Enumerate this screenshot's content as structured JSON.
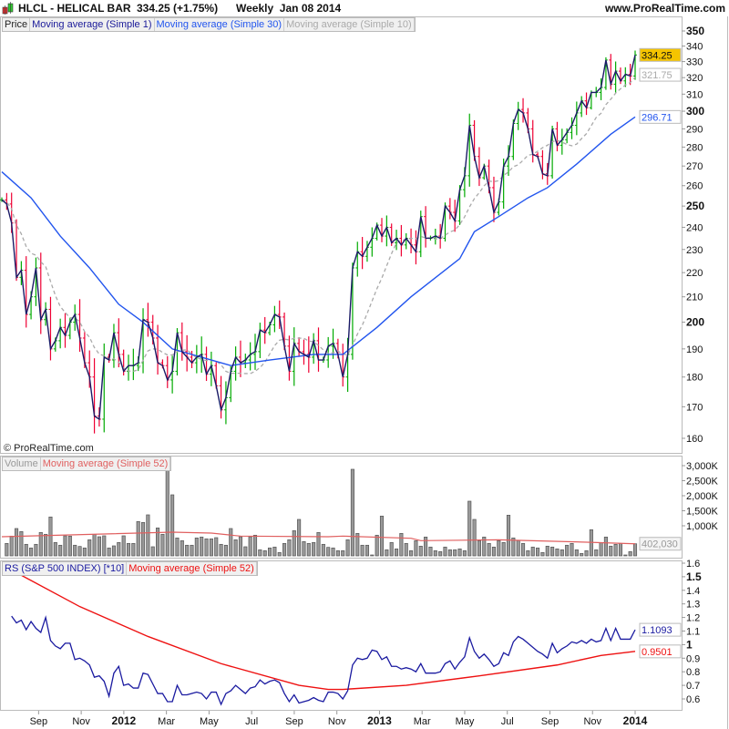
{
  "header": {
    "symbol": "HLCL - HELICAL BAR",
    "price": "334.25 (+1.75%)",
    "period": "Weekly  Jan 08 2014",
    "site": "www.ProRealTime.com",
    "icon": "candlestick-icon"
  },
  "price_panel": {
    "legend": [
      "Price",
      "Moving average (Simple 1)",
      "Moving average (Simple 30)",
      "Moving average (Simple 10)"
    ],
    "legend_colors": [
      "#222222",
      "#1a1a99",
      "#2255ee",
      "#aaaaaa"
    ],
    "copyright": "© ProRealTime.com",
    "scale": "log",
    "ticks": [
      160,
      170,
      180,
      190,
      200,
      210,
      220,
      230,
      240,
      250,
      260,
      270,
      280,
      290,
      300,
      310,
      320,
      330,
      340,
      350
    ],
    "bold_ticks": [
      200,
      250,
      300,
      350
    ],
    "badges": {
      "last": "334.25",
      "sma10": "321.75",
      "sma30": "296.71"
    }
  },
  "volume_panel": {
    "legend": [
      "Volume",
      "Moving average (Simple 52)"
    ],
    "ticks": [
      "1,000K",
      "1,500K",
      "2,000K",
      "2,500K",
      "3,000K"
    ],
    "badge": "402,030"
  },
  "rs_panel": {
    "legend": [
      "RS (S&P 500 INDEX) [*10]",
      "Moving average (Simple 52)"
    ],
    "ticks": [
      "0.6",
      "0.7",
      "0.8",
      "0.9",
      "1",
      "1.1",
      "1.2",
      "1.3",
      "1.4",
      "1.5",
      "1.6"
    ],
    "badges": {
      "rs": "1.1093",
      "ma": "0.9501"
    }
  },
  "x_axis": {
    "labels": [
      "Sep",
      "Nov",
      "2012",
      "Mar",
      "May",
      "Jul",
      "Sep",
      "Nov",
      "2013",
      "Mar",
      "May",
      "Jul",
      "Sep",
      "Nov",
      "2014"
    ],
    "bold": [
      "2012",
      "2013",
      "2014"
    ]
  },
  "colors": {
    "up": "#00aa00",
    "down": "#ee0033",
    "close_line": "#1a1a66",
    "sma30": "#2255ee",
    "sma10": "#aaaaaa",
    "volume_bar": "#999999",
    "rs_line": "#1a1aa0",
    "rs_ma": "#ee1111",
    "last_badge": "#f5c400"
  },
  "chart_data": {
    "type": "line",
    "frequency": "weekly",
    "last_date": "2014-01-08",
    "close": [
      253,
      251,
      242,
      218,
      221,
      203,
      210,
      222,
      201,
      205,
      190,
      193,
      198,
      195,
      200,
      203,
      194,
      185,
      180,
      167,
      166,
      187,
      186,
      196,
      188,
      182,
      184,
      184,
      185,
      201,
      200,
      194,
      185,
      184,
      179,
      182,
      196,
      189,
      187,
      185,
      187,
      188,
      181,
      184,
      177,
      169,
      173,
      182,
      187,
      185,
      186,
      188,
      189,
      197,
      196,
      199,
      203,
      202,
      191,
      182,
      192,
      189,
      188,
      187,
      193,
      186,
      186,
      191,
      192,
      188,
      180,
      188,
      222,
      229,
      227,
      231,
      235,
      241,
      236,
      240,
      233,
      235,
      232,
      235,
      232,
      229,
      245,
      235,
      235,
      236,
      235,
      250,
      247,
      243,
      258,
      265,
      292,
      275,
      264,
      270,
      259,
      247,
      252,
      270,
      275,
      293,
      301,
      299,
      290,
      276,
      275,
      266,
      265,
      290,
      281,
      284,
      288,
      292,
      299,
      306,
      302,
      311,
      311,
      314,
      331,
      316,
      324,
      318,
      322,
      321,
      334.25
    ],
    "sma30": [
      [
        "2011-07-13",
        267
      ],
      [
        "2011-08-24",
        254
      ],
      [
        "2011-10-05",
        236
      ],
      [
        "2011-11-16",
        222
      ],
      [
        "2011-12-28",
        207
      ],
      [
        "2012-02-01",
        200
      ],
      [
        "2012-03-14",
        190
      ],
      [
        "2012-05-09",
        186
      ],
      [
        "2012-06-06",
        184
      ],
      [
        "2012-08-01",
        186
      ],
      [
        "2012-10-03",
        188
      ],
      [
        "2012-11-14",
        188
      ],
      [
        "2013-01-02",
        198
      ],
      [
        "2013-02-20",
        210
      ],
      [
        "2013-05-01",
        226
      ],
      [
        "2013-05-22",
        238
      ],
      [
        "2013-06-26",
        245
      ],
      [
        "2013-08-07",
        254
      ],
      [
        "2013-09-04",
        259
      ],
      [
        "2013-10-16",
        271
      ],
      [
        "2013-12-04",
        287
      ],
      [
        "2014-01-08",
        296.71
      ]
    ],
    "volume_k": [
      414,
      657,
      909,
      808,
      384,
      263,
      384,
      778,
      717,
      1293,
      444,
      354,
      667,
      657,
      354,
      313,
      263,
      535,
      717,
      636,
      667,
      263,
      333,
      444,
      667,
      414,
      414,
      1141,
      1111,
      1364,
      303,
      929,
      717,
      3141,
      2030,
      596,
      505,
      354,
      354,
      596,
      626,
      566,
      566,
      606,
      384,
      354,
      909,
      535,
      636,
      303,
      636,
      687,
      202,
      172,
      263,
      293,
      111,
      414,
      535,
      838,
      1212,
      475,
      414,
      444,
      778,
      384,
      283,
      263,
      172,
      172,
      535,
      2879,
      747,
      354,
      354,
      30,
      687,
      1323,
      202,
      444,
      232,
      747,
      414,
      172,
      505,
      323,
      626,
      293,
      172,
      141,
      293,
      202,
      202,
      232,
      172,
      1818,
      1212,
      505,
      626,
      414,
      293,
      505,
      444,
      1353,
      596,
      505,
      414,
      172,
      293,
      263,
      111,
      323,
      293,
      232,
      202,
      354,
      414,
      202,
      81,
      172,
      869,
      202,
      444,
      626,
      323,
      384,
      414,
      30,
      141,
      402.03
    ],
    "volume_ma52_k": [
      [
        "2011-07-13",
        636
      ],
      [
        "2012-03-14",
        788
      ],
      [
        "2012-05-09",
        757
      ],
      [
        "2012-06-20",
        657
      ],
      [
        "2012-10-24",
        636
      ],
      [
        "2012-11-14",
        657
      ],
      [
        "2013-02-20",
        586
      ],
      [
        "2013-03-06",
        505
      ],
      [
        "2013-06-26",
        535
      ],
      [
        "2013-10-30",
        455
      ],
      [
        "2014-01-08",
        402.03
      ]
    ],
    "rs": [
      1.21,
      1.16,
      1.18,
      1.11,
      1.17,
      1.12,
      1.09,
      1.2,
      1.03,
      0.99,
      0.97,
      1.01,
      1.01,
      0.89,
      0.9,
      0.88,
      0.85,
      0.76,
      0.77,
      0.73,
      0.62,
      0.79,
      0.84,
      0.7,
      0.71,
      0.68,
      0.68,
      0.79,
      0.78,
      0.71,
      0.64,
      0.64,
      0.58,
      0.58,
      0.7,
      0.63,
      0.63,
      0.64,
      0.65,
      0.64,
      0.6,
      0.65,
      0.65,
      0.56,
      0.64,
      0.66,
      0.7,
      0.67,
      0.64,
      0.68,
      0.69,
      0.74,
      0.71,
      0.73,
      0.74,
      0.72,
      0.64,
      0.58,
      0.63,
      0.57,
      0.58,
      0.59,
      0.61,
      0.59,
      0.58,
      0.65,
      0.65,
      0.64,
      0.6,
      0.66,
      0.85,
      0.9,
      0.89,
      0.9,
      0.96,
      0.95,
      0.89,
      0.91,
      0.84,
      0.84,
      0.82,
      0.83,
      0.82,
      0.8,
      0.86,
      0.79,
      0.79,
      0.79,
      0.8,
      0.86,
      0.88,
      0.82,
      0.87,
      0.91,
      1.05,
      0.95,
      0.9,
      0.93,
      0.89,
      0.84,
      0.86,
      0.94,
      0.92,
      1.02,
      1.06,
      1.04,
      1.01,
      0.98,
      0.95,
      0.93,
      0.9,
      1.01,
      0.94,
      0.97,
      0.99,
      1.02,
      1.01,
      1.03,
      1.01,
      1.04,
      1.02,
      1.03,
      1.12,
      1.03,
      1.12,
      1.04,
      1.04,
      1.04,
      1.1093
    ],
    "rs_ma52": [
      [
        "2011-08-03",
        1.53
      ],
      [
        "2011-11-02",
        1.28
      ],
      [
        "2012-02-08",
        1.06
      ],
      [
        "2012-05-23",
        0.86
      ],
      [
        "2012-09-12",
        0.7
      ],
      [
        "2012-10-24",
        0.67
      ],
      [
        "2012-11-14",
        0.67
      ],
      [
        "2013-02-13",
        0.7
      ],
      [
        "2013-05-29",
        0.77
      ],
      [
        "2013-09-18",
        0.85
      ],
      [
        "2013-11-20",
        0.92
      ],
      [
        "2014-01-08",
        0.9501
      ]
    ],
    "price_range": [
      160,
      350
    ],
    "volume_range_k": [
      0,
      3000
    ],
    "rs_range": [
      0.6,
      1.6
    ]
  }
}
